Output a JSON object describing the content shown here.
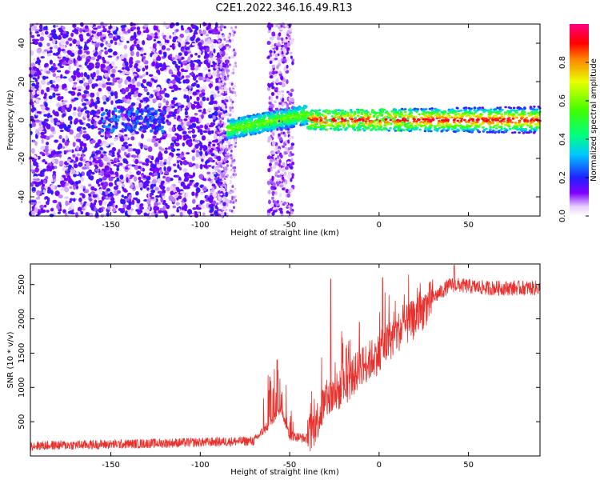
{
  "title": "C2E1.2022.346.16.49.R13",
  "colors": {
    "snr_line": "#e8302c",
    "axis": "#000000",
    "background": "#ffffff"
  },
  "chart_data": [
    {
      "type": "heatmap",
      "xlabel": "Height of straight line (km)",
      "ylabel": "Frequency (Hz)",
      "xlim": [
        -195,
        90
      ],
      "ylim": [
        -50,
        50
      ],
      "x_ticks": [
        -150,
        -100,
        -50,
        0,
        50
      ],
      "y_ticks": [
        -40,
        -20,
        0,
        20,
        40
      ],
      "x_tick_labels": [
        "-150",
        "-100",
        "-50",
        "0",
        "50"
      ],
      "y_tick_labels": [
        "-40",
        "-20",
        "0",
        "20",
        "40"
      ],
      "colorbar": {
        "label": "Normalized spectral amplitude",
        "range": [
          0,
          1
        ],
        "ticks": [
          0.0,
          0.2,
          0.4,
          0.6,
          0.8
        ],
        "tick_labels": [
          "0.0",
          "0.2",
          "0.4",
          "0.6",
          "0.8"
        ],
        "colormap": "rainbow (white-purple-blue-cyan-green-yellow-red-magenta)"
      },
      "description_regions": [
        {
          "x_range": [
            -195,
            -85
          ],
          "pattern": "noise speckle across all frequencies, amplitude ~0.05-0.2"
        },
        {
          "x_range": [
            -62,
            -48
          ],
          "pattern": "noise speckle band"
        },
        {
          "x_range": [
            -85,
            -40
          ],
          "pattern": "signal near 0 Hz rising from -5 to +5 Hz, amplitude ~0.4-0.6"
        },
        {
          "x_range": [
            -40,
            90
          ],
          "pattern": "narrow carrier near 0 Hz, amplitude ~0.8-1.0"
        }
      ]
    },
    {
      "type": "line",
      "xlabel": "Height of straight line (km)",
      "ylabel": "SNR (10 * v/v)",
      "xlim": [
        -195,
        90
      ],
      "ylim": [
        0,
        2800
      ],
      "x_ticks": [
        -150,
        -100,
        -50,
        0,
        50
      ],
      "y_ticks": [
        500,
        1000,
        1500,
        2000,
        2500
      ],
      "x_tick_labels": [
        "-150",
        "-100",
        "-50",
        "0",
        "50"
      ],
      "y_tick_labels": [
        "500",
        "1000",
        "1500",
        "2000",
        "2500"
      ],
      "trend": {
        "x": [
          -195,
          -150,
          -100,
          -70,
          -60,
          -55,
          -50,
          -40,
          -35,
          -30,
          -20,
          -10,
          0,
          10,
          20,
          30,
          40,
          60,
          90
        ],
        "y": [
          150,
          170,
          200,
          220,
          500,
          700,
          300,
          250,
          500,
          800,
          1000,
          1300,
          1500,
          1800,
          2000,
          2300,
          2500,
          2450,
          2450
        ]
      },
      "spikes": [
        {
          "x": -57,
          "y": 1400
        },
        {
          "x": -61,
          "y": 1150
        },
        {
          "x": -27,
          "y": 2580
        },
        {
          "x": 2,
          "y": 2600
        },
        {
          "x": -11,
          "y": 1950
        },
        {
          "x": 42,
          "y": 2780
        }
      ]
    }
  ]
}
